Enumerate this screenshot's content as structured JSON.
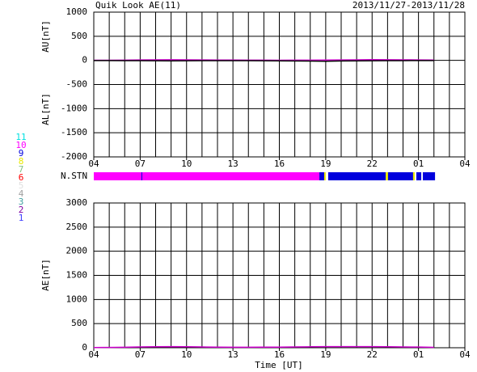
{
  "chart_data": [
    {
      "type": "line",
      "title": "Quik Look AE(11)",
      "subtitle": "2013/11/27-2013/11/28",
      "y_labels": [
        "AU[nT]",
        "AL[nT]"
      ],
      "x": [
        0,
        1,
        2,
        3,
        4,
        5,
        6,
        7,
        8,
        9,
        10,
        11,
        12,
        13,
        14,
        15,
        16,
        17,
        18,
        19,
        20,
        21,
        22
      ],
      "series": [
        {
          "color": "#cc00cc",
          "values": [
            2,
            3,
            5,
            10,
            12,
            14,
            12,
            10,
            8,
            6,
            5,
            4,
            3,
            4,
            5,
            6,
            10,
            12,
            15,
            14,
            12,
            10,
            6
          ]
        },
        {
          "color": "#000000",
          "values": [
            -3,
            -4,
            -5,
            -6,
            -8,
            -10,
            -8,
            -6,
            -5,
            -5,
            -6,
            -8,
            -10,
            -12,
            -15,
            -18,
            -12,
            -10,
            -8,
            -6,
            -5,
            -4,
            -3
          ]
        }
      ],
      "xlim": [
        0,
        24
      ],
      "xticks": [
        {
          "value": 0,
          "label": "04"
        },
        {
          "value": 3,
          "label": "07"
        },
        {
          "value": 6,
          "label": "10"
        },
        {
          "value": 9,
          "label": "13"
        },
        {
          "value": 12,
          "label": "16"
        },
        {
          "value": 15,
          "label": "19"
        },
        {
          "value": 18,
          "label": "22"
        },
        {
          "value": 21,
          "label": "01"
        },
        {
          "value": 24,
          "label": "04"
        }
      ],
      "xgrid": [
        0,
        1,
        2,
        3,
        4,
        5,
        6,
        7,
        8,
        9,
        10,
        11,
        12,
        13,
        14,
        15,
        16,
        17,
        18,
        19,
        20,
        21,
        22,
        23,
        24
      ],
      "ylim": [
        -2000,
        1000
      ],
      "yticks": [
        1000,
        500,
        0,
        -500,
        -1000,
        -1500,
        -2000
      ],
      "grid": true,
      "station_bar": {
        "label": "N.STN",
        "segments": [
          {
            "start": 0,
            "end": 14.59,
            "station": 10
          },
          {
            "start": 3.08,
            "end": 3.13,
            "station": 9
          },
          {
            "start": 14.59,
            "end": 14.9,
            "station": 9
          },
          {
            "start": 14.9,
            "end": 15.0,
            "station": 8
          },
          {
            "start": 15.16,
            "end": 18.88,
            "station": 9
          },
          {
            "start": 18.88,
            "end": 19.03,
            "station": 8
          },
          {
            "start": 19.03,
            "end": 20.65,
            "station": 9
          },
          {
            "start": 20.65,
            "end": 20.76,
            "station": 8
          },
          {
            "start": 20.86,
            "end": 21.18,
            "station": 9
          },
          {
            "start": 21.28,
            "end": 22.07,
            "station": 9
          }
        ]
      },
      "stations": [
        {
          "number": 11,
          "color": "#00e0e0"
        },
        {
          "number": 10,
          "color": "#ff00ff"
        },
        {
          "number": 9,
          "color": "#0000dd"
        },
        {
          "number": 8,
          "color": "#e8e800"
        },
        {
          "number": 7,
          "color": "#80c080"
        },
        {
          "number": 6,
          "color": "#ff0000"
        },
        {
          "number": 5,
          "color": "#e0e0e0"
        },
        {
          "number": 4,
          "color": "#a0a0a0"
        },
        {
          "number": 3,
          "color": "#40a0a0"
        },
        {
          "number": 2,
          "color": "#8000a0"
        },
        {
          "number": 1,
          "color": "#4040ff"
        }
      ]
    },
    {
      "type": "line",
      "y_labels": [
        "AE[nT]"
      ],
      "xlabel": "Time [UT]",
      "x": [
        0,
        1,
        2,
        3,
        4,
        5,
        6,
        7,
        8,
        9,
        10,
        11,
        12,
        13,
        14,
        15,
        16,
        17,
        18,
        19,
        20,
        21,
        22
      ],
      "series": [
        {
          "color": "#cc00cc",
          "values": [
            5,
            7,
            10,
            16,
            20,
            24,
            20,
            16,
            13,
            11,
            11,
            12,
            13,
            16,
            20,
            24,
            22,
            22,
            23,
            20,
            17,
            14,
            9
          ]
        }
      ],
      "xlim": [
        0,
        24
      ],
      "xticks": [
        {
          "value": 0,
          "label": "04"
        },
        {
          "value": 3,
          "label": "07"
        },
        {
          "value": 6,
          "label": "10"
        },
        {
          "value": 9,
          "label": "13"
        },
        {
          "value": 12,
          "label": "16"
        },
        {
          "value": 15,
          "label": "19"
        },
        {
          "value": 18,
          "label": "22"
        },
        {
          "value": 21,
          "label": "01"
        },
        {
          "value": 24,
          "label": "04"
        }
      ],
      "xgrid": [
        0,
        1,
        2,
        3,
        4,
        5,
        6,
        7,
        8,
        9,
        10,
        11,
        12,
        13,
        14,
        15,
        16,
        17,
        18,
        19,
        20,
        21,
        22,
        23,
        24
      ],
      "ylim": [
        0,
        3000
      ],
      "yticks": [
        3000,
        2500,
        2000,
        1500,
        1000,
        500,
        0
      ],
      "grid": true
    }
  ]
}
